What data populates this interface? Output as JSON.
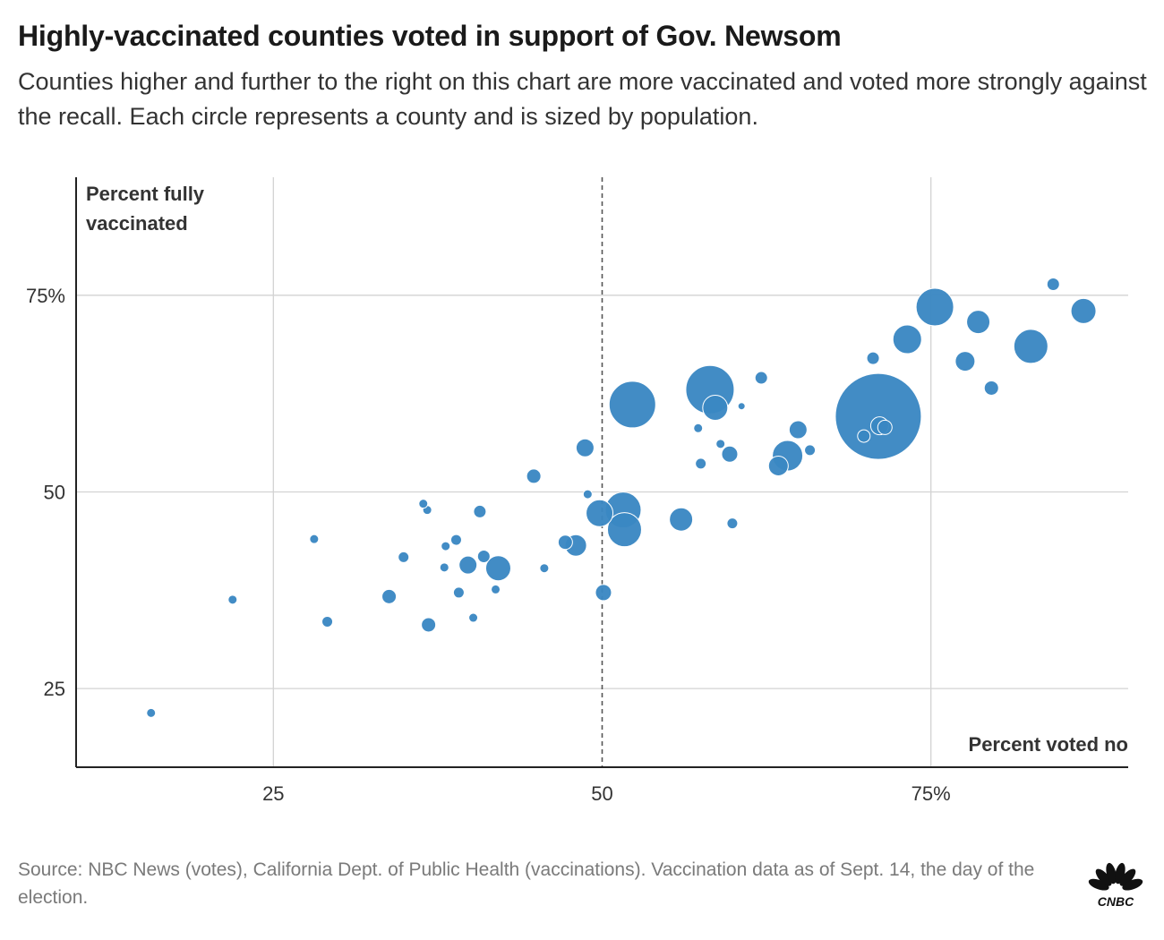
{
  "header": {
    "title": "Highly-vaccinated counties voted in support of Gov. Newsom",
    "subtitle": "Counties higher and further to the right on this chart are more vaccinated and voted more strongly against the recall. Each circle represents a county and is sized by population."
  },
  "footer": {
    "source": "Source: NBC News (votes), California Dept. of Public Health (vaccinations). Vaccination data as of Sept. 14, the day of the election.",
    "logo_text": "CNBC"
  },
  "colors": {
    "bubble": "#3a87c3",
    "bubble_stroke": "#ffffff",
    "grid": "#d3d3d3",
    "axis": "#222222",
    "reference_line": "#555555"
  },
  "chart_data": {
    "type": "scatter",
    "title": "Highly-vaccinated counties voted in support of Gov. Newsom",
    "xlabel": "Percent voted no",
    "ylabel": "Percent fully vaccinated",
    "xlim": [
      10,
      90
    ],
    "ylim": [
      15,
      90
    ],
    "x_ticks": [
      {
        "value": 25,
        "label": "25"
      },
      {
        "value": 50,
        "label": "50"
      },
      {
        "value": 75,
        "label": "75%"
      }
    ],
    "y_ticks": [
      {
        "value": 25,
        "label": "25"
      },
      {
        "value": 50,
        "label": "50"
      },
      {
        "value": 75,
        "label": "75%"
      }
    ],
    "reference_line": {
      "axis": "x",
      "value": 50,
      "style": "dashed"
    },
    "grid": true,
    "size_encoding": "population",
    "points": [
      {
        "x": 71.0,
        "y": 59.6,
        "r": 48
      },
      {
        "x": 58.2,
        "y": 63.0,
        "r": 27
      },
      {
        "x": 52.3,
        "y": 61.1,
        "r": 26
      },
      {
        "x": 51.6,
        "y": 47.7,
        "r": 20
      },
      {
        "x": 51.7,
        "y": 45.2,
        "r": 19
      },
      {
        "x": 75.3,
        "y": 73.5,
        "r": 21
      },
      {
        "x": 82.6,
        "y": 68.5,
        "r": 19
      },
      {
        "x": 64.1,
        "y": 54.6,
        "r": 17
      },
      {
        "x": 73.2,
        "y": 69.4,
        "r": 16
      },
      {
        "x": 86.6,
        "y": 73.0,
        "r": 14
      },
      {
        "x": 58.6,
        "y": 60.7,
        "r": 14
      },
      {
        "x": 49.8,
        "y": 47.3,
        "r": 15
      },
      {
        "x": 42.1,
        "y": 40.3,
        "r": 14
      },
      {
        "x": 56.0,
        "y": 46.5,
        "r": 13
      },
      {
        "x": 78.6,
        "y": 71.6,
        "r": 13
      },
      {
        "x": 48.0,
        "y": 43.2,
        "r": 12
      },
      {
        "x": 63.4,
        "y": 53.3,
        "r": 11
      },
      {
        "x": 77.6,
        "y": 66.6,
        "r": 11
      },
      {
        "x": 64.9,
        "y": 57.9,
        "r": 10
      },
      {
        "x": 39.8,
        "y": 40.7,
        "r": 10
      },
      {
        "x": 48.7,
        "y": 55.6,
        "r": 10
      },
      {
        "x": 71.1,
        "y": 58.4,
        "r": 10
      },
      {
        "x": 50.1,
        "y": 37.2,
        "r": 9
      },
      {
        "x": 59.7,
        "y": 54.8,
        "r": 9
      },
      {
        "x": 79.6,
        "y": 63.2,
        "r": 8
      },
      {
        "x": 47.2,
        "y": 43.6,
        "r": 8
      },
      {
        "x": 71.5,
        "y": 58.2,
        "r": 8
      },
      {
        "x": 44.8,
        "y": 52.0,
        "r": 8
      },
      {
        "x": 33.8,
        "y": 36.7,
        "r": 8
      },
      {
        "x": 36.8,
        "y": 33.1,
        "r": 8
      },
      {
        "x": 84.3,
        "y": 76.4,
        "r": 7
      },
      {
        "x": 62.1,
        "y": 64.5,
        "r": 7
      },
      {
        "x": 70.6,
        "y": 67.0,
        "r": 7
      },
      {
        "x": 41.0,
        "y": 41.8,
        "r": 7
      },
      {
        "x": 40.7,
        "y": 47.5,
        "r": 7
      },
      {
        "x": 69.9,
        "y": 57.1,
        "r": 7
      },
      {
        "x": 65.8,
        "y": 55.3,
        "r": 6
      },
      {
        "x": 57.5,
        "y": 53.6,
        "r": 6
      },
      {
        "x": 39.1,
        "y": 37.2,
        "r": 6
      },
      {
        "x": 29.1,
        "y": 33.5,
        "r": 6
      },
      {
        "x": 34.9,
        "y": 41.7,
        "r": 6
      },
      {
        "x": 38.9,
        "y": 43.9,
        "r": 6
      },
      {
        "x": 59.9,
        "y": 46.0,
        "r": 6
      },
      {
        "x": 15.7,
        "y": 21.9,
        "r": 5
      },
      {
        "x": 21.9,
        "y": 36.3,
        "r": 5
      },
      {
        "x": 28.1,
        "y": 44.0,
        "r": 5
      },
      {
        "x": 38.1,
        "y": 43.1,
        "r": 5
      },
      {
        "x": 38.0,
        "y": 40.4,
        "r": 5
      },
      {
        "x": 40.2,
        "y": 34.0,
        "r": 5
      },
      {
        "x": 41.9,
        "y": 37.6,
        "r": 5
      },
      {
        "x": 36.7,
        "y": 47.7,
        "r": 5
      },
      {
        "x": 36.4,
        "y": 48.5,
        "r": 5
      },
      {
        "x": 45.6,
        "y": 40.3,
        "r": 5
      },
      {
        "x": 59.0,
        "y": 56.1,
        "r": 5
      },
      {
        "x": 57.3,
        "y": 58.1,
        "r": 5
      },
      {
        "x": 48.9,
        "y": 49.7,
        "r": 5
      },
      {
        "x": 60.6,
        "y": 60.9,
        "r": 4
      }
    ]
  }
}
